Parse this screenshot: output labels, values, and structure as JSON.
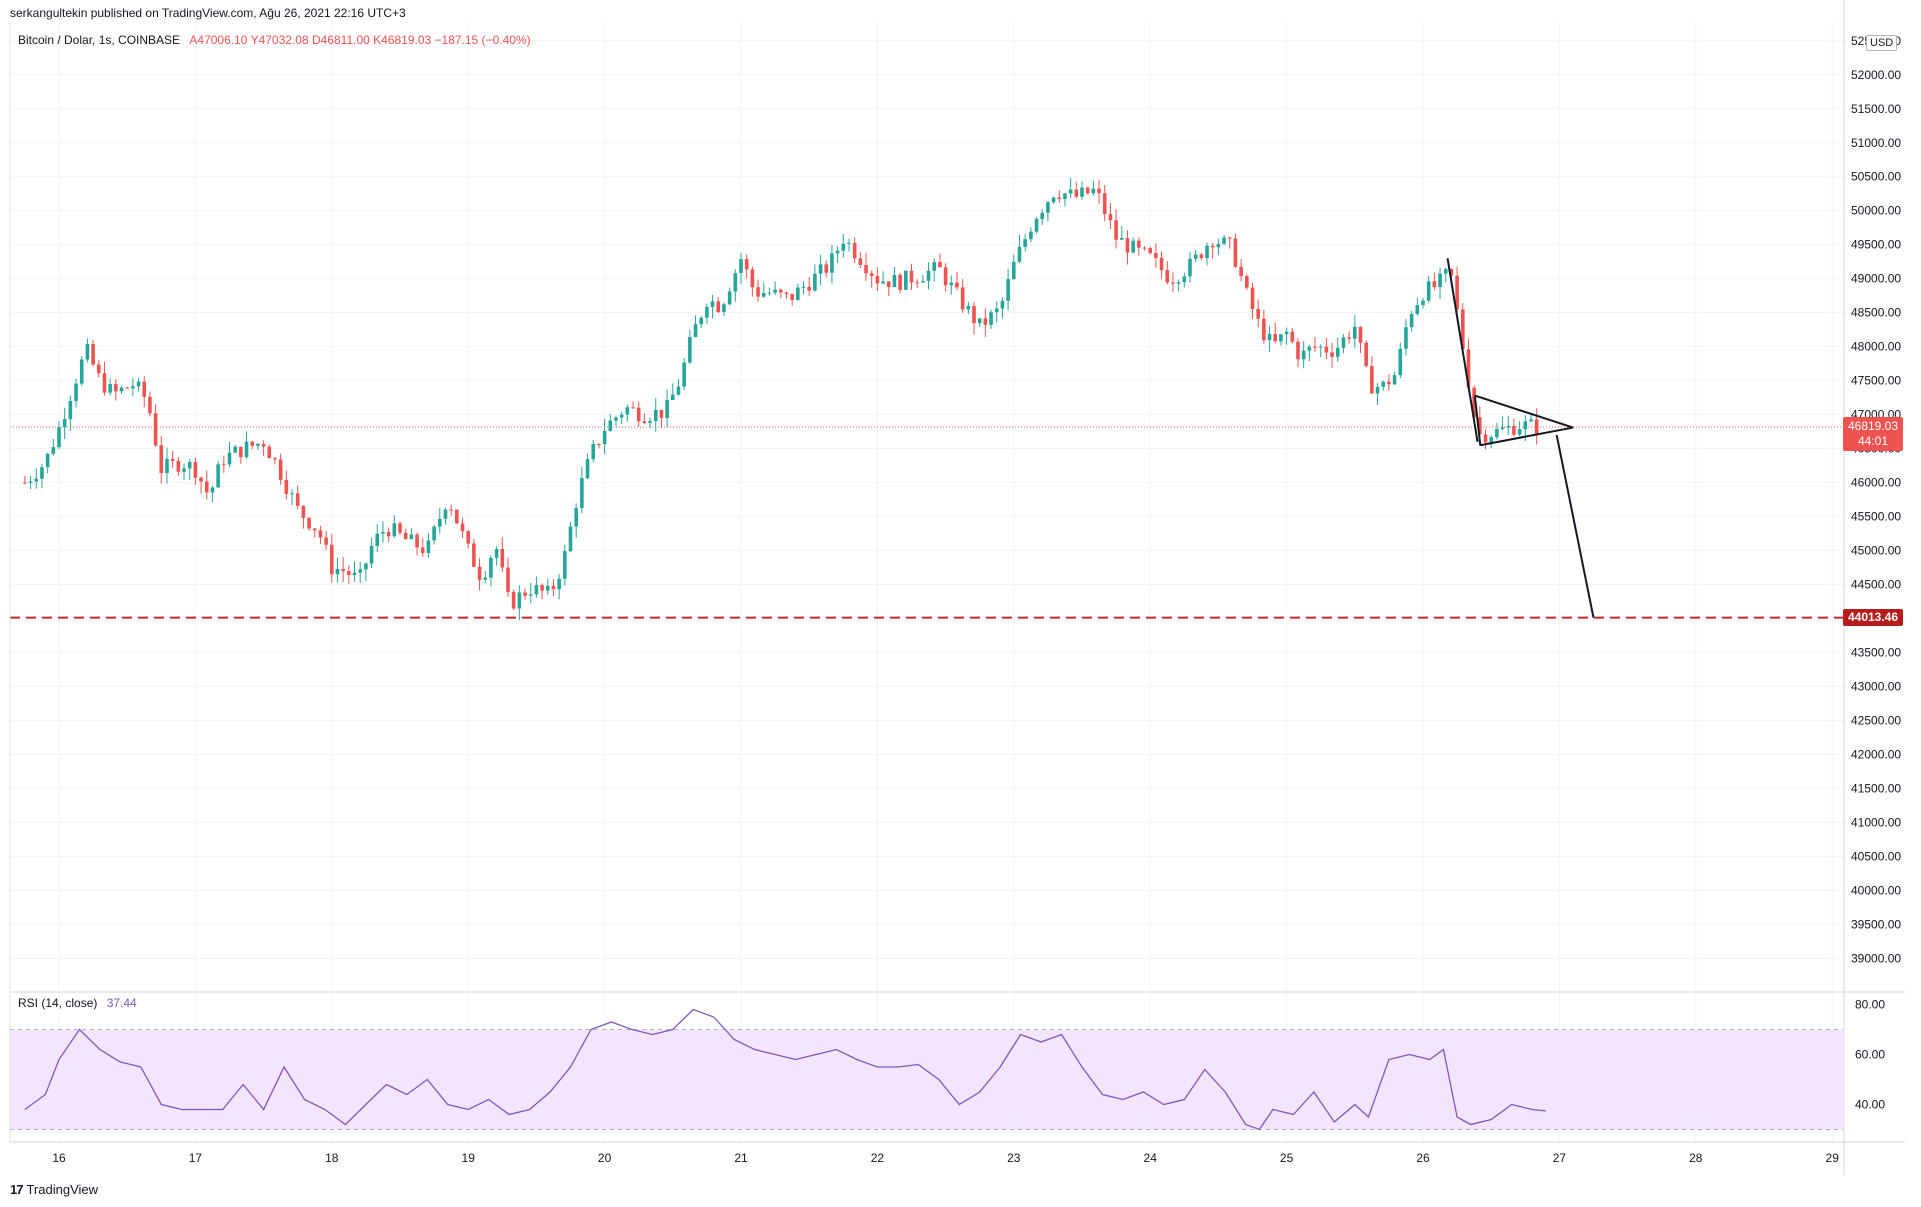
{
  "header": {
    "publisher": "serkangultekin published on TradingView.com, Ağu 26, 2021 22:16 UTC+3"
  },
  "legend": {
    "symbol": "Bitcoin / Dolar, 1s, COINBASE",
    "ohlc": "A47006.10  Y47032.08  D46811.00  K46819.03  −187.15 (−0.40%)"
  },
  "axis": {
    "currency": "USD"
  },
  "price_tags": {
    "last_price": "46819.03",
    "countdown": "44:01",
    "level": "44013.46"
  },
  "rsi_legend": {
    "label": "RSI (14, close)",
    "value": "37.44"
  },
  "footer": {
    "logo_mark": "17",
    "logo_text": "TradingView"
  },
  "colors": {
    "up": "#26a69a",
    "down": "#ef5350",
    "rsi_line": "#7e57c2",
    "rsi_band": "#f3e5fd",
    "level_line": "#c62828",
    "grid": "#f0f3fa"
  },
  "chart_data": [
    {
      "type": "candlestick",
      "x_labels": [
        "16",
        "17",
        "18",
        "19",
        "20",
        "21",
        "22",
        "23",
        "24",
        "25",
        "26",
        "27",
        "28",
        "29"
      ],
      "y_ticks": [
        39000,
        39500,
        40000,
        40500,
        41000,
        41500,
        42000,
        42500,
        43000,
        43500,
        44000,
        44500,
        45000,
        45500,
        46000,
        46500,
        47000,
        47500,
        48000,
        48500,
        49000,
        49500,
        50000,
        50500,
        51000,
        51500,
        52000,
        52500
      ],
      "ylim": [
        38800,
        52600
      ],
      "close_path": [
        [
          15.75,
          46000
        ],
        [
          15.9,
          46300
        ],
        [
          16.0,
          46800
        ],
        [
          16.1,
          47400
        ],
        [
          16.2,
          47950
        ],
        [
          16.3,
          47500
        ],
        [
          16.4,
          47300
        ],
        [
          16.55,
          47450
        ],
        [
          16.65,
          47200
        ],
        [
          16.75,
          46200
        ],
        [
          16.9,
          46300
        ],
        [
          17.0,
          46200
        ],
        [
          17.1,
          45800
        ],
        [
          17.2,
          46350
        ],
        [
          17.35,
          46500
        ],
        [
          17.5,
          46600
        ],
        [
          17.6,
          46250
        ],
        [
          17.75,
          45600
        ],
        [
          17.9,
          45300
        ],
        [
          18.0,
          44750
        ],
        [
          18.1,
          44700
        ],
        [
          18.2,
          44550
        ],
        [
          18.3,
          45100
        ],
        [
          18.4,
          45350
        ],
        [
          18.55,
          45150
        ],
        [
          18.7,
          45000
        ],
        [
          18.85,
          45800
        ],
        [
          19.0,
          45000
        ],
        [
          19.1,
          44600
        ],
        [
          19.2,
          45100
        ],
        [
          19.3,
          44200
        ],
        [
          19.45,
          44450
        ],
        [
          19.6,
          44350
        ],
        [
          19.7,
          44850
        ],
        [
          19.8,
          45800
        ],
        [
          19.9,
          46400
        ],
        [
          20.0,
          46800
        ],
        [
          20.15,
          47100
        ],
        [
          20.3,
          47000
        ],
        [
          20.45,
          47050
        ],
        [
          20.55,
          47500
        ],
        [
          20.65,
          48200
        ],
        [
          20.75,
          48700
        ],
        [
          20.85,
          48600
        ],
        [
          21.0,
          49300
        ],
        [
          21.1,
          48800
        ],
        [
          21.2,
          48800
        ],
        [
          21.35,
          48700
        ],
        [
          21.5,
          48950
        ],
        [
          21.65,
          49200
        ],
        [
          21.75,
          49600
        ],
        [
          21.9,
          49250
        ],
        [
          22.0,
          49000
        ],
        [
          22.15,
          48950
        ],
        [
          22.3,
          49050
        ],
        [
          22.45,
          49150
        ],
        [
          22.6,
          48700
        ],
        [
          22.75,
          48300
        ],
        [
          22.9,
          48550
        ],
        [
          23.0,
          49200
        ],
        [
          23.15,
          49900
        ],
        [
          23.3,
          50300
        ],
        [
          23.45,
          50200
        ],
        [
          23.6,
          50300
        ],
        [
          23.75,
          49600
        ],
        [
          23.9,
          49400
        ],
        [
          24.0,
          49300
        ],
        [
          24.15,
          49000
        ],
        [
          24.3,
          49200
        ],
        [
          24.45,
          49600
        ],
        [
          24.6,
          49450
        ],
        [
          24.7,
          48800
        ],
        [
          24.8,
          48300
        ],
        [
          24.9,
          48000
        ],
        [
          25.0,
          48200
        ],
        [
          25.1,
          47850
        ],
        [
          25.2,
          48000
        ],
        [
          25.35,
          47950
        ],
        [
          25.5,
          48300
        ],
        [
          25.6,
          47450
        ],
        [
          25.7,
          47400
        ],
        [
          25.8,
          47600
        ],
        [
          25.9,
          48500
        ],
        [
          26.0,
          48800
        ],
        [
          26.1,
          48900
        ],
        [
          26.2,
          49100
        ],
        [
          26.3,
          47900
        ],
        [
          26.4,
          46700
        ],
        [
          26.55,
          46750
        ],
        [
          26.7,
          46850
        ],
        [
          26.85,
          46819
        ]
      ],
      "horizontal_level": 44013.46,
      "last_price": 46819.03
    },
    {
      "type": "line",
      "title": "RSI (14, close)",
      "ylim": [
        25,
        85
      ],
      "y_ticks": [
        40,
        60,
        80
      ],
      "band": [
        30,
        70
      ],
      "x": [
        15.75,
        15.9,
        16.0,
        16.15,
        16.3,
        16.45,
        16.6,
        16.75,
        16.9,
        17.05,
        17.2,
        17.35,
        17.5,
        17.65,
        17.8,
        17.95,
        18.1,
        18.25,
        18.4,
        18.55,
        18.7,
        18.85,
        19.0,
        19.15,
        19.3,
        19.45,
        19.6,
        19.75,
        19.9,
        20.05,
        20.2,
        20.35,
        20.5,
        20.65,
        20.8,
        20.95,
        21.1,
        21.25,
        21.4,
        21.55,
        21.7,
        21.85,
        22.0,
        22.15,
        22.3,
        22.45,
        22.6,
        22.75,
        22.9,
        23.05,
        23.2,
        23.35,
        23.5,
        23.65,
        23.8,
        23.95,
        24.1,
        24.25,
        24.4,
        24.55,
        24.7,
        24.8,
        24.9,
        25.05,
        25.2,
        25.35,
        25.5,
        25.6,
        25.75,
        25.9,
        26.05,
        26.15,
        26.25,
        26.35,
        26.5,
        26.65,
        26.8,
        26.9
      ],
      "y": [
        38,
        44,
        58,
        70,
        62,
        57,
        55,
        40,
        38,
        38,
        38,
        48,
        38,
        55,
        42,
        38,
        32,
        40,
        48,
        44,
        50,
        40,
        38,
        42,
        36,
        38,
        45,
        55,
        70,
        73,
        70,
        68,
        70,
        78,
        75,
        66,
        62,
        60,
        58,
        60,
        62,
        58,
        55,
        55,
        56,
        50,
        40,
        45,
        55,
        68,
        65,
        68,
        55,
        44,
        42,
        45,
        40,
        42,
        54,
        45,
        32,
        30,
        38,
        36,
        45,
        33,
        40,
        35,
        58,
        60,
        58,
        62,
        35,
        32,
        34,
        40,
        38,
        37.44
      ]
    }
  ]
}
